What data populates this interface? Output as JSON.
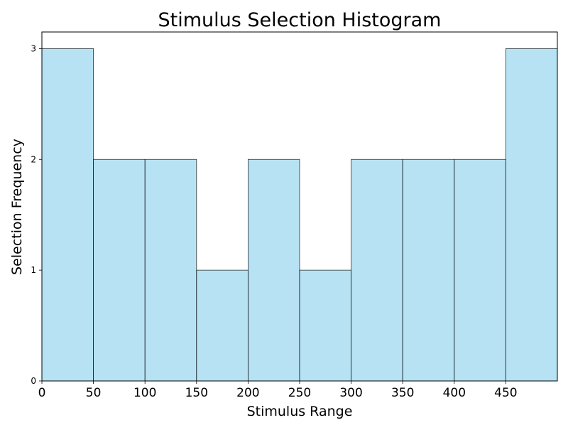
{
  "chart_data": {
    "type": "bar",
    "title": "Stimulus Selection Histogram",
    "xlabel": "Stimulus Range",
    "ylabel": "Selection Frequency",
    "bins": [
      {
        "start": 0,
        "end": 50,
        "count": 3
      },
      {
        "start": 50,
        "end": 100,
        "count": 2
      },
      {
        "start": 100,
        "end": 150,
        "count": 2
      },
      {
        "start": 150,
        "end": 200,
        "count": 1
      },
      {
        "start": 200,
        "end": 250,
        "count": 2
      },
      {
        "start": 250,
        "end": 300,
        "count": 1
      },
      {
        "start": 300,
        "end": 350,
        "count": 2
      },
      {
        "start": 350,
        "end": 400,
        "count": 2
      },
      {
        "start": 400,
        "end": 450,
        "count": 2
      },
      {
        "start": 450,
        "end": 500,
        "count": 3
      }
    ],
    "xlim": [
      0,
      500
    ],
    "ylim": [
      0,
      3.15
    ],
    "xticks": [
      "0",
      "50",
      "100",
      "150",
      "200",
      "250",
      "300",
      "350",
      "400",
      "450"
    ],
    "yticks": [
      "0",
      "1",
      "2",
      "3"
    ],
    "grid": false,
    "colors": {
      "bar_fill": "#87ceeb",
      "bar_edge": "#000000",
      "axes": "#000000"
    }
  }
}
